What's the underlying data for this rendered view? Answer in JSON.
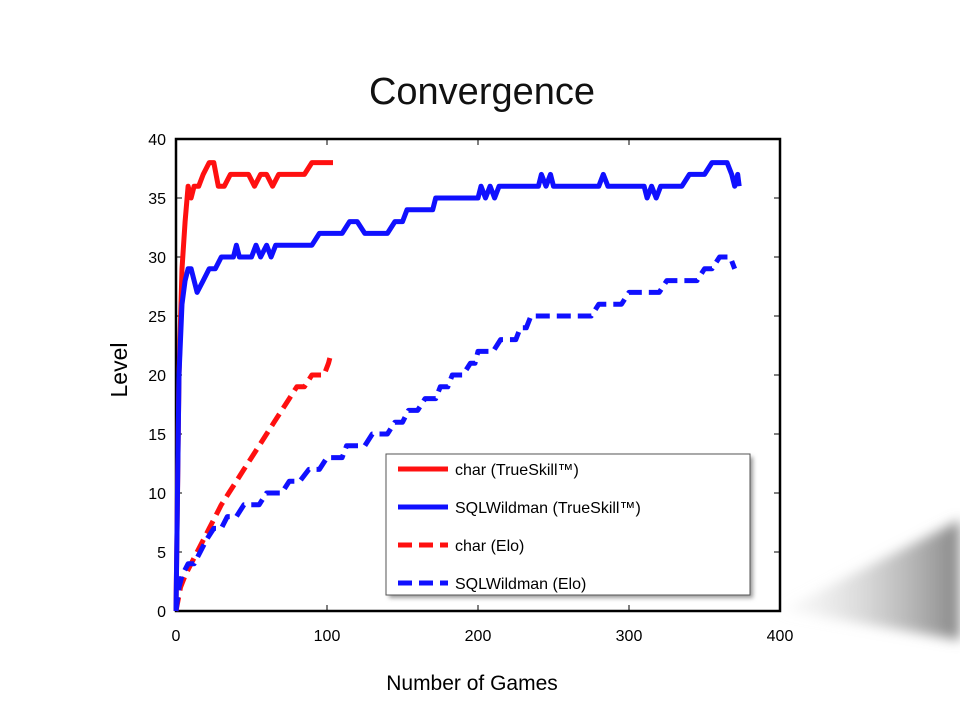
{
  "chart_data": {
    "type": "line",
    "title": "Convergence",
    "xlabel": "Number of Games",
    "ylabel": "Level",
    "xlim": [
      0,
      400
    ],
    "ylim": [
      0,
      40
    ],
    "xticks": [
      0,
      100,
      200,
      300,
      400
    ],
    "yticks": [
      0,
      5,
      10,
      15,
      20,
      25,
      30,
      35,
      40
    ],
    "grid": false,
    "legend_position": "lower-right",
    "series": [
      {
        "name": "char (TrueSkill™)",
        "color": "#ff1010",
        "style": "solid",
        "points": [
          [
            0,
            0
          ],
          [
            2,
            20
          ],
          [
            4,
            29
          ],
          [
            6,
            33
          ],
          [
            8,
            36
          ],
          [
            10,
            35
          ],
          [
            12,
            36
          ],
          [
            15,
            36
          ],
          [
            18,
            37
          ],
          [
            22,
            38
          ],
          [
            25,
            38
          ],
          [
            28,
            36
          ],
          [
            32,
            36
          ],
          [
            36,
            37
          ],
          [
            42,
            37
          ],
          [
            48,
            37
          ],
          [
            52,
            36
          ],
          [
            56,
            37
          ],
          [
            60,
            37
          ],
          [
            64,
            36
          ],
          [
            68,
            37
          ],
          [
            80,
            37
          ],
          [
            85,
            37
          ],
          [
            90,
            38
          ],
          [
            104,
            38
          ]
        ]
      },
      {
        "name": "SQLWildman (TrueSkill™)",
        "color": "#1010ff",
        "style": "solid",
        "points": [
          [
            0,
            0
          ],
          [
            2,
            20
          ],
          [
            4,
            26
          ],
          [
            6,
            28
          ],
          [
            8,
            29
          ],
          [
            10,
            29
          ],
          [
            14,
            27
          ],
          [
            18,
            28
          ],
          [
            22,
            29
          ],
          [
            26,
            29
          ],
          [
            30,
            30
          ],
          [
            38,
            30
          ],
          [
            40,
            31
          ],
          [
            42,
            30
          ],
          [
            50,
            30
          ],
          [
            53,
            31
          ],
          [
            56,
            30
          ],
          [
            60,
            31
          ],
          [
            63,
            30
          ],
          [
            66,
            31
          ],
          [
            75,
            31
          ],
          [
            90,
            31
          ],
          [
            95,
            32
          ],
          [
            105,
            32
          ],
          [
            110,
            32
          ],
          [
            115,
            33
          ],
          [
            120,
            33
          ],
          [
            125,
            32
          ],
          [
            140,
            32
          ],
          [
            145,
            33
          ],
          [
            150,
            33
          ],
          [
            153,
            34
          ],
          [
            160,
            34
          ],
          [
            170,
            34
          ],
          [
            172,
            35
          ],
          [
            190,
            35
          ],
          [
            200,
            35
          ],
          [
            202,
            36
          ],
          [
            205,
            35
          ],
          [
            208,
            36
          ],
          [
            211,
            35
          ],
          [
            214,
            36
          ],
          [
            240,
            36
          ],
          [
            242,
            37
          ],
          [
            245,
            36
          ],
          [
            248,
            37
          ],
          [
            250,
            36
          ],
          [
            280,
            36
          ],
          [
            283,
            37
          ],
          [
            286,
            36
          ],
          [
            310,
            36
          ],
          [
            312,
            35
          ],
          [
            315,
            36
          ],
          [
            318,
            35
          ],
          [
            321,
            36
          ],
          [
            335,
            36
          ],
          [
            340,
            37
          ],
          [
            350,
            37
          ],
          [
            355,
            38
          ],
          [
            365,
            38
          ],
          [
            368,
            37
          ],
          [
            370,
            36
          ],
          [
            372,
            37
          ],
          [
            373,
            36
          ]
        ]
      },
      {
        "name": "char (Elo)",
        "color": "#ff1010",
        "style": "dashed",
        "points": [
          [
            0,
            0
          ],
          [
            3,
            2
          ],
          [
            6,
            3
          ],
          [
            10,
            4
          ],
          [
            14,
            5
          ],
          [
            18,
            6
          ],
          [
            22,
            7
          ],
          [
            26,
            8
          ],
          [
            30,
            9
          ],
          [
            35,
            10
          ],
          [
            40,
            11
          ],
          [
            45,
            12
          ],
          [
            50,
            13
          ],
          [
            55,
            14
          ],
          [
            60,
            15
          ],
          [
            65,
            16
          ],
          [
            70,
            17
          ],
          [
            75,
            18
          ],
          [
            80,
            19
          ],
          [
            85,
            19
          ],
          [
            90,
            20
          ],
          [
            98,
            20
          ],
          [
            101,
            21
          ],
          [
            103,
            22
          ]
        ]
      },
      {
        "name": "SQLWildman (Elo)",
        "color": "#1010ff",
        "style": "dashed",
        "points": [
          [
            0,
            0
          ],
          [
            2,
            2
          ],
          [
            4,
            3
          ],
          [
            8,
            4
          ],
          [
            12,
            4
          ],
          [
            16,
            5
          ],
          [
            20,
            6
          ],
          [
            25,
            7
          ],
          [
            30,
            7
          ],
          [
            34,
            8
          ],
          [
            40,
            8
          ],
          [
            45,
            9
          ],
          [
            55,
            9
          ],
          [
            60,
            10
          ],
          [
            70,
            10
          ],
          [
            75,
            11
          ],
          [
            82,
            11
          ],
          [
            88,
            12
          ],
          [
            95,
            12
          ],
          [
            100,
            13
          ],
          [
            110,
            13
          ],
          [
            113,
            14
          ],
          [
            125,
            14
          ],
          [
            130,
            15
          ],
          [
            140,
            15
          ],
          [
            145,
            16
          ],
          [
            150,
            16
          ],
          [
            154,
            17
          ],
          [
            160,
            17
          ],
          [
            165,
            18
          ],
          [
            172,
            18
          ],
          [
            175,
            19
          ],
          [
            180,
            19
          ],
          [
            183,
            20
          ],
          [
            190,
            20
          ],
          [
            195,
            21
          ],
          [
            198,
            21
          ],
          [
            200,
            22
          ],
          [
            210,
            22
          ],
          [
            215,
            23
          ],
          [
            225,
            23
          ],
          [
            228,
            24
          ],
          [
            232,
            24
          ],
          [
            235,
            25
          ],
          [
            260,
            25
          ],
          [
            275,
            25
          ],
          [
            280,
            26
          ],
          [
            295,
            26
          ],
          [
            300,
            27
          ],
          [
            320,
            27
          ],
          [
            325,
            28
          ],
          [
            345,
            28
          ],
          [
            350,
            29
          ],
          [
            355,
            29
          ],
          [
            360,
            30
          ],
          [
            367,
            30
          ],
          [
            370,
            29
          ]
        ]
      }
    ]
  }
}
